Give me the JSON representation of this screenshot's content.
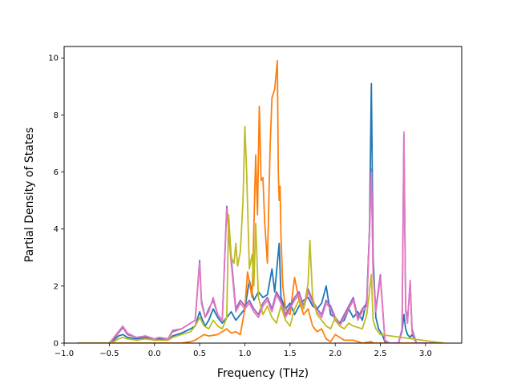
{
  "chart_data": {
    "type": "line",
    "title": "",
    "xlabel": "Frequency (THz)",
    "ylabel": "Partial Density of States",
    "xlim": [
      -1.0,
      3.4
    ],
    "ylim": [
      0,
      10.4
    ],
    "xticks": [
      -1.0,
      -0.5,
      0.0,
      0.5,
      1.0,
      1.5,
      2.0,
      2.5,
      3.0
    ],
    "xtick_labels": [
      "−1.0",
      "−0.5",
      "0.0",
      "0.5",
      "1.0",
      "1.5",
      "2.0",
      "2.5",
      "3.0"
    ],
    "yticks": [
      0,
      2,
      4,
      6,
      8,
      10
    ],
    "ytick_labels": [
      "0",
      "2",
      "4",
      "6",
      "8",
      "10"
    ],
    "grid": false,
    "legend": "none",
    "series": [
      {
        "color": "#1f77b4",
        "x": [
          -0.85,
          -0.5,
          -0.45,
          -0.4,
          -0.35,
          -0.3,
          -0.2,
          -0.1,
          0.0,
          0.05,
          0.15,
          0.2,
          0.3,
          0.4,
          0.45,
          0.5,
          0.52,
          0.56,
          0.6,
          0.65,
          0.7,
          0.75,
          0.8,
          0.85,
          0.9,
          0.95,
          1.0,
          1.05,
          1.1,
          1.15,
          1.2,
          1.25,
          1.3,
          1.33,
          1.38,
          1.4,
          1.45,
          1.5,
          1.55,
          1.6,
          1.65,
          1.7,
          1.75,
          1.8,
          1.85,
          1.9,
          1.95,
          2.0,
          2.05,
          2.1,
          2.15,
          2.2,
          2.25,
          2.3,
          2.35,
          2.38,
          2.4,
          2.42,
          2.45,
          2.48,
          2.5,
          2.52,
          2.55,
          2.6,
          2.7,
          2.74,
          2.76,
          2.78,
          2.8,
          2.83,
          2.85,
          2.9,
          3.2
        ],
        "y": [
          0,
          0,
          0.1,
          0.25,
          0.3,
          0.2,
          0.15,
          0.2,
          0.1,
          0.15,
          0.1,
          0.25,
          0.35,
          0.5,
          0.6,
          1.1,
          0.9,
          0.6,
          0.8,
          1.2,
          0.9,
          0.7,
          0.9,
          1.1,
          0.8,
          1.0,
          1.2,
          2.2,
          1.5,
          1.8,
          1.6,
          1.7,
          2.6,
          1.8,
          3.5,
          1.6,
          1.2,
          1.4,
          1.0,
          1.3,
          1.5,
          1.6,
          1.3,
          1.2,
          1.4,
          2.0,
          1.0,
          0.9,
          0.7,
          0.8,
          1.2,
          0.9,
          1.1,
          0.8,
          1.5,
          4.0,
          9.1,
          3.0,
          0.9,
          0.5,
          0.4,
          0.3,
          0.05,
          0,
          0,
          0.4,
          1.0,
          0.5,
          0.3,
          0.2,
          0.3,
          0,
          0
        ]
      },
      {
        "color": "#ff7f0e",
        "x": [
          -0.85,
          0.3,
          0.4,
          0.45,
          0.5,
          0.55,
          0.6,
          0.7,
          0.8,
          0.85,
          0.9,
          0.95,
          1.0,
          1.03,
          1.08,
          1.12,
          1.14,
          1.16,
          1.18,
          1.2,
          1.22,
          1.25,
          1.28,
          1.3,
          1.33,
          1.36,
          1.37,
          1.38,
          1.39,
          1.4,
          1.42,
          1.45,
          1.5,
          1.55,
          1.6,
          1.65,
          1.7,
          1.75,
          1.8,
          1.85,
          1.9,
          1.95,
          2.0,
          2.1,
          2.2,
          2.3,
          2.4,
          2.42,
          2.5,
          3.2
        ],
        "y": [
          0,
          0,
          0.05,
          0.1,
          0.2,
          0.3,
          0.25,
          0.3,
          0.5,
          0.35,
          0.4,
          0.3,
          1.2,
          2.5,
          1.6,
          6.6,
          4.5,
          8.3,
          5.7,
          5.8,
          4.2,
          2.8,
          6.9,
          8.6,
          8.9,
          9.9,
          6.0,
          5.0,
          5.5,
          3.8,
          2.0,
          1.2,
          1.0,
          2.3,
          1.5,
          1.0,
          1.2,
          0.6,
          0.4,
          0.5,
          0.15,
          0.05,
          0.3,
          0.1,
          0.1,
          0,
          0.05,
          0,
          0,
          0
        ]
      },
      {
        "color": "#9467bd",
        "x": [
          -0.85,
          -0.5,
          -0.45,
          -0.4,
          -0.35,
          -0.3,
          -0.2,
          -0.1,
          0.0,
          0.05,
          0.15,
          0.2,
          0.3,
          0.4,
          0.45,
          0.5,
          0.52,
          0.56,
          0.6,
          0.65,
          0.7,
          0.75,
          0.8,
          0.85,
          0.9,
          0.95,
          1.0,
          1.05,
          1.1,
          1.15,
          1.2,
          1.25,
          1.3,
          1.35,
          1.4,
          1.45,
          1.5,
          1.55,
          1.6,
          1.65,
          1.7,
          1.75,
          1.8,
          1.85,
          1.9,
          1.95,
          2.0,
          2.05,
          2.1,
          2.15,
          2.2,
          2.25,
          2.3,
          2.35,
          2.38,
          2.4,
          2.42,
          2.45,
          2.5,
          2.55,
          2.6,
          2.7,
          2.74,
          2.76,
          2.78,
          2.8,
          2.83,
          2.85,
          2.9,
          3.2
        ],
        "y": [
          0,
          0,
          0.15,
          0.35,
          0.55,
          0.3,
          0.2,
          0.25,
          0.15,
          0.2,
          0.15,
          0.4,
          0.5,
          0.7,
          0.8,
          2.9,
          1.5,
          0.9,
          1.2,
          1.5,
          1.0,
          0.8,
          4.8,
          3.0,
          1.2,
          1.5,
          1.3,
          1.5,
          1.2,
          1.0,
          1.4,
          1.6,
          1.2,
          1.8,
          1.5,
          1.0,
          1.3,
          1.6,
          1.8,
          1.3,
          1.9,
          1.5,
          1.2,
          1.0,
          1.5,
          1.3,
          0.9,
          0.7,
          1.0,
          1.3,
          1.6,
          0.9,
          1.2,
          1.4,
          4.0,
          6.1,
          2.5,
          1.2,
          2.4,
          0.1,
          0,
          0,
          0.5,
          7.3,
          1.2,
          0.8,
          2.1,
          0.5,
          0,
          0
        ]
      },
      {
        "color": "#e377c2",
        "x": [
          -0.85,
          -0.5,
          -0.45,
          -0.4,
          -0.35,
          -0.3,
          -0.2,
          -0.1,
          0.0,
          0.05,
          0.15,
          0.2,
          0.3,
          0.4,
          0.45,
          0.5,
          0.52,
          0.56,
          0.6,
          0.65,
          0.7,
          0.75,
          0.8,
          0.85,
          0.9,
          0.95,
          1.0,
          1.05,
          1.1,
          1.15,
          1.2,
          1.25,
          1.3,
          1.35,
          1.4,
          1.45,
          1.5,
          1.55,
          1.6,
          1.65,
          1.7,
          1.75,
          1.8,
          1.85,
          1.9,
          1.95,
          2.0,
          2.05,
          2.1,
          2.15,
          2.2,
          2.25,
          2.3,
          2.35,
          2.38,
          2.4,
          2.42,
          2.45,
          2.5,
          2.55,
          2.6,
          2.7,
          2.74,
          2.76,
          2.78,
          2.8,
          2.83,
          2.85,
          2.9,
          3.2
        ],
        "y": [
          0,
          0,
          0.2,
          0.4,
          0.6,
          0.35,
          0.2,
          0.25,
          0.15,
          0.2,
          0.15,
          0.45,
          0.5,
          0.7,
          0.8,
          2.8,
          1.4,
          0.9,
          1.1,
          1.6,
          1.0,
          0.8,
          4.7,
          2.8,
          1.1,
          1.4,
          1.2,
          1.4,
          1.1,
          0.9,
          1.3,
          1.5,
          1.1,
          1.7,
          1.4,
          0.9,
          1.2,
          1.5,
          1.7,
          1.2,
          1.8,
          1.4,
          1.1,
          0.9,
          1.4,
          1.2,
          0.8,
          0.6,
          0.9,
          1.2,
          1.5,
          0.8,
          1.1,
          1.3,
          3.9,
          6.0,
          2.4,
          1.1,
          2.3,
          0.1,
          0,
          0,
          0.4,
          7.4,
          1.1,
          0.7,
          2.2,
          0.4,
          0,
          0
        ]
      },
      {
        "color": "#bcbd22",
        "x": [
          -0.85,
          -0.5,
          -0.45,
          -0.4,
          -0.35,
          -0.3,
          -0.2,
          -0.1,
          0.0,
          0.05,
          0.15,
          0.2,
          0.3,
          0.4,
          0.45,
          0.5,
          0.55,
          0.6,
          0.65,
          0.7,
          0.75,
          0.8,
          0.82,
          0.85,
          0.88,
          0.9,
          0.92,
          0.95,
          0.98,
          1.0,
          1.02,
          1.05,
          1.08,
          1.1,
          1.12,
          1.15,
          1.2,
          1.25,
          1.3,
          1.35,
          1.4,
          1.45,
          1.5,
          1.55,
          1.6,
          1.65,
          1.7,
          1.72,
          1.75,
          1.8,
          1.85,
          1.9,
          1.95,
          2.0,
          2.05,
          2.1,
          2.15,
          2.2,
          2.3,
          2.35,
          2.4,
          2.42,
          2.45,
          2.5,
          3.2
        ],
        "y": [
          0,
          0,
          0.05,
          0.15,
          0.2,
          0.15,
          0.1,
          0.15,
          0.1,
          0.1,
          0.1,
          0.2,
          0.3,
          0.4,
          0.6,
          0.9,
          0.6,
          0.5,
          0.8,
          0.6,
          0.5,
          0.9,
          4.5,
          3.0,
          2.8,
          3.5,
          2.7,
          3.2,
          5.0,
          7.6,
          6.0,
          2.6,
          3.1,
          2.0,
          4.2,
          1.6,
          1.0,
          1.3,
          0.9,
          0.7,
          1.3,
          0.8,
          0.6,
          1.2,
          1.5,
          1.2,
          2.1,
          3.6,
          1.6,
          1.0,
          0.8,
          0.6,
          0.5,
          0.9,
          0.6,
          0.5,
          0.7,
          0.6,
          0.5,
          1.0,
          2.4,
          0.8,
          0.5,
          0.3,
          0
        ]
      }
    ]
  }
}
